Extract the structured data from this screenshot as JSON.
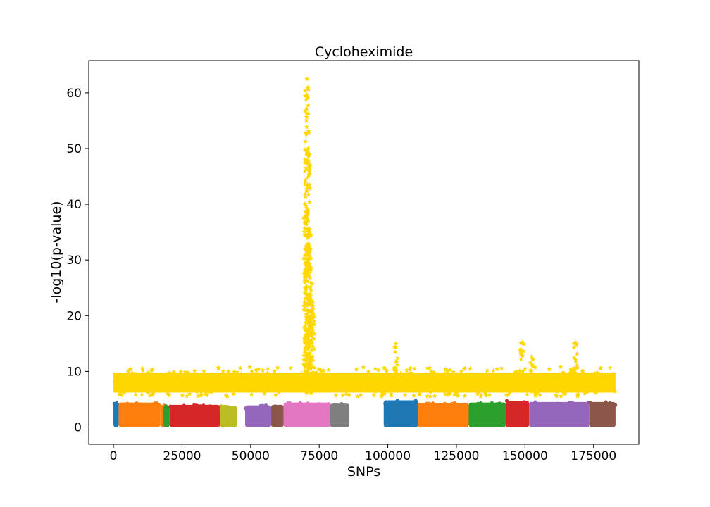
{
  "chart_data": {
    "type": "scatter",
    "title": "Cycloheximide",
    "xlabel": "SNPs",
    "ylabel": "-log10(p-value)",
    "xlim": [
      -9000,
      191500
    ],
    "ylim": [
      -3.1,
      65.8
    ],
    "xticks": [
      0,
      25000,
      50000,
      75000,
      100000,
      125000,
      150000,
      175000
    ],
    "xtick_labels": [
      "0",
      "25000",
      "50000",
      "75000",
      "100000",
      "125000",
      "150000",
      "175000"
    ],
    "yticks": [
      0,
      10,
      20,
      30,
      40,
      50,
      60
    ],
    "ytick_labels": [
      "0",
      "10",
      "20",
      "30",
      "40",
      "50",
      "60"
    ],
    "grid": false,
    "legend": "none",
    "series": [
      {
        "marker": "circle",
        "segments": [
          {
            "x": [
              0,
              1900
            ],
            "y": [
              0,
              4.3
            ],
            "color": "#1f77b4"
          },
          {
            "x": [
              1900,
              17000
            ],
            "y": [
              0,
              4.4
            ],
            "color": "#ff7f0e"
          },
          {
            "x": [
              17000,
              20000
            ],
            "y": [
              0,
              4.0
            ],
            "color": "#ff7f0e"
          },
          {
            "x": [
              18200,
              20500
            ],
            "y": [
              0,
              3.8
            ],
            "color": "#2ca02c"
          },
          {
            "x": [
              20500,
              38800
            ],
            "y": [
              0,
              4.0
            ],
            "color": "#d62728"
          },
          {
            "x": [
              38800,
              45000
            ],
            "y": [
              0,
              3.8
            ],
            "color": "#bcbd22"
          },
          {
            "x": [
              48000,
              57500
            ],
            "y": [
              0,
              3.9
            ],
            "color": "#9467bd"
          },
          {
            "x": [
              57500,
              62000
            ],
            "y": [
              0,
              4.0
            ],
            "color": "#8c564b"
          },
          {
            "x": [
              62000,
              79000
            ],
            "y": [
              0,
              4.4
            ],
            "color": "#e377c2"
          },
          {
            "x": [
              79000,
              86000
            ],
            "y": [
              0,
              4.2
            ],
            "color": "#7f7f7f"
          },
          {
            "x": [
              98500,
              111000
            ],
            "y": [
              0,
              4.8
            ],
            "color": "#1f77b4"
          },
          {
            "x": [
              111000,
              129500
            ],
            "y": [
              0,
              4.3
            ],
            "color": "#ff7f0e"
          },
          {
            "x": [
              129500,
              143000
            ],
            "y": [
              0,
              4.4
            ],
            "color": "#2ca02c"
          },
          {
            "x": [
              143000,
              151500
            ],
            "y": [
              0,
              4.7
            ],
            "color": "#d62728"
          },
          {
            "x": [
              151500,
              173500
            ],
            "y": [
              0,
              4.5
            ],
            "color": "#9467bd"
          },
          {
            "x": [
              173500,
              183000
            ],
            "y": [
              0,
              4.5
            ],
            "color": "#8c564b"
          }
        ]
      },
      {
        "marker": "star",
        "color": "#ffd700",
        "baseline_x": [
          0,
          183000
        ],
        "baseline_y": [
          5.5,
          10.8
        ],
        "peaks": [
          {
            "x": 69000,
            "y": 8.0
          },
          {
            "x": 70000,
            "y": 38.0
          },
          {
            "x": 70500,
            "y": 62.5
          },
          {
            "x": 71000,
            "y": 50.0
          },
          {
            "x": 71500,
            "y": 35.0
          },
          {
            "x": 72000,
            "y": 26.0
          },
          {
            "x": 72500,
            "y": 21.0
          },
          {
            "x": 103000,
            "y": 15.0
          },
          {
            "x": 149000,
            "y": 15.2
          },
          {
            "x": 152500,
            "y": 12.7
          },
          {
            "x": 168500,
            "y": 15.2
          }
        ]
      }
    ]
  }
}
